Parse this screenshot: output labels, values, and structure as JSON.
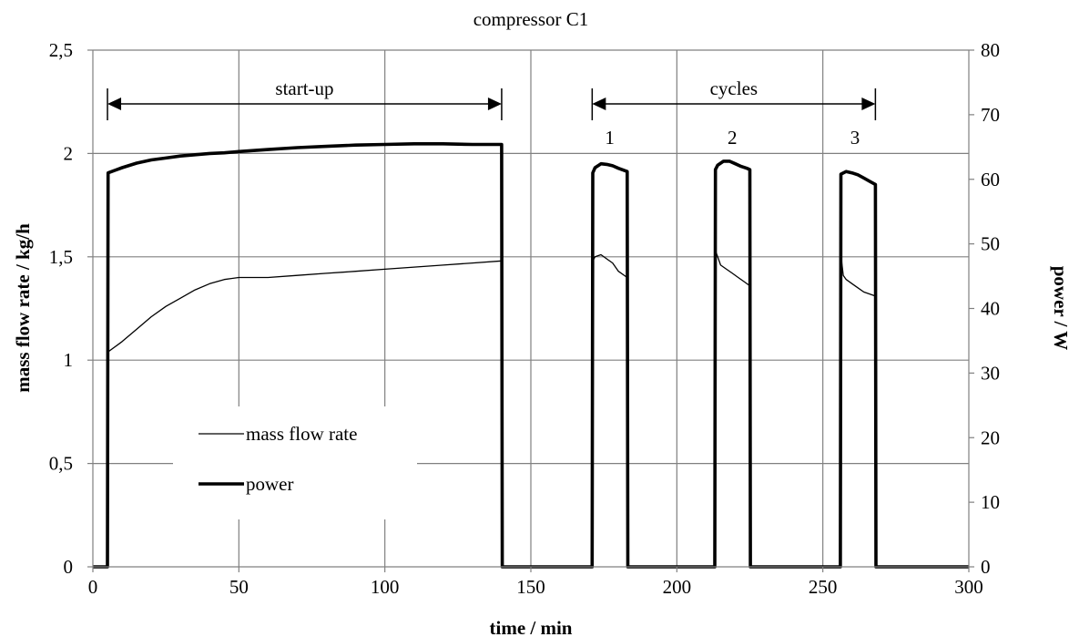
{
  "chart_data": {
    "type": "line",
    "title": "compressor C1",
    "xlabel": "time / min",
    "ylabel": "mass flow rate / kg/h",
    "y2label": "power / W",
    "xlim": [
      0,
      300
    ],
    "ylim": [
      0,
      2.5
    ],
    "y2lim": [
      0,
      80
    ],
    "grid": true,
    "x_ticks": [
      "0",
      "50",
      "100",
      "150",
      "200",
      "250",
      "300"
    ],
    "y_ticks": [
      "0",
      "0,5",
      "1",
      "1,5",
      "2",
      "2,5"
    ],
    "y2_ticks": [
      "0",
      "10",
      "20",
      "30",
      "40",
      "50",
      "60",
      "70",
      "80"
    ],
    "legend": {
      "placement": "inside-left"
    },
    "annotations": [
      {
        "label": "start-up",
        "x_start": 5,
        "x_end": 140
      },
      {
        "label": "cycles",
        "x_start": 171,
        "x_end": 268
      }
    ],
    "cycle_labels": [
      {
        "label": "1",
        "x": 177
      },
      {
        "label": "2",
        "x": 219
      },
      {
        "label": "3",
        "x": 261
      }
    ],
    "series": [
      {
        "name": "mass flow rate",
        "axis": "left",
        "x": [
          0,
          5,
          5.2,
          10,
          15,
          20,
          25,
          30,
          35,
          40,
          45,
          50,
          60,
          70,
          80,
          90,
          100,
          110,
          120,
          130,
          140,
          140.2,
          171,
          171.2,
          172,
          174,
          176,
          178,
          180,
          183,
          183.2,
          213,
          213.2,
          214,
          215,
          217,
          219,
          221,
          223,
          225,
          225.2,
          256,
          256.2,
          256.5,
          257,
          258,
          260,
          262,
          264,
          266,
          268,
          268.2,
          300
        ],
        "y": [
          0,
          0,
          1.04,
          1.09,
          1.15,
          1.21,
          1.26,
          1.3,
          1.34,
          1.37,
          1.39,
          1.4,
          1.4,
          1.41,
          1.42,
          1.43,
          1.44,
          1.45,
          1.46,
          1.47,
          1.48,
          0,
          0,
          1.48,
          1.5,
          1.51,
          1.49,
          1.47,
          1.43,
          1.4,
          0,
          0,
          1.53,
          1.5,
          1.46,
          1.44,
          1.42,
          1.4,
          1.38,
          1.36,
          0,
          0,
          1.53,
          1.47,
          1.41,
          1.39,
          1.37,
          1.35,
          1.33,
          1.32,
          1.31,
          0,
          0
        ]
      },
      {
        "name": "power",
        "axis": "right",
        "x": [
          0,
          5,
          5.2,
          10,
          15,
          20,
          25,
          30,
          35,
          40,
          45,
          50,
          60,
          70,
          80,
          90,
          100,
          110,
          120,
          130,
          140,
          140.2,
          171,
          171.2,
          172,
          174,
          176,
          178,
          180,
          183,
          183.2,
          213,
          213.2,
          214,
          216,
          218,
          220,
          222,
          224,
          225,
          225.2,
          256,
          256.2,
          258,
          260,
          262,
          264,
          266,
          268,
          268.2,
          300
        ],
        "y": [
          0,
          0,
          61.0,
          61.8,
          62.5,
          63.0,
          63.3,
          63.6,
          63.8,
          64.0,
          64.1,
          64.3,
          64.6,
          64.9,
          65.1,
          65.3,
          65.4,
          65.5,
          65.5,
          65.4,
          65.4,
          0,
          0,
          61.0,
          61.8,
          62.4,
          62.3,
          62.1,
          61.7,
          61.2,
          0,
          0,
          61.5,
          62.2,
          62.8,
          62.8,
          62.4,
          62.0,
          61.7,
          61.5,
          0,
          0,
          60.8,
          61.2,
          61.0,
          60.7,
          60.2,
          59.7,
          59.2,
          0,
          0
        ]
      }
    ]
  }
}
